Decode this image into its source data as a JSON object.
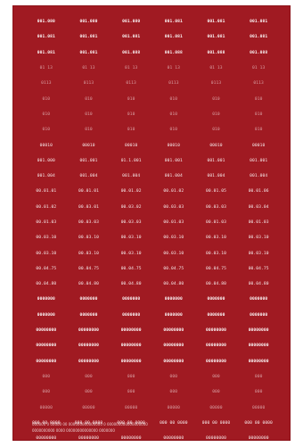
{
  "sheet": {
    "rows": [
      {
        "style": "bold",
        "cells": [
          "001.080",
          "001.080",
          "001.080",
          "001.081",
          "001.081",
          "001.081"
        ]
      },
      {
        "style": "bold",
        "cells": [
          "001.081",
          "001.081",
          "001.081",
          "001.081",
          "001.081",
          "001.081"
        ]
      },
      {
        "style": "bold",
        "cells": [
          "001.081",
          "001.081",
          "001.088",
          "001.088",
          "001.088",
          "001.088"
        ]
      },
      {
        "style": "dim",
        "cells": [
          "01 13",
          "01 13",
          "01 13",
          "01 13",
          "01 13",
          "01 13"
        ]
      },
      {
        "style": "dim",
        "cells": [
          "0113",
          "0113",
          "0113",
          "0113",
          "0113",
          "0113"
        ]
      },
      {
        "style": "dim",
        "cells": [
          "010",
          "010",
          "010",
          "010",
          "010",
          "010"
        ]
      },
      {
        "style": "dim",
        "cells": [
          "010",
          "010",
          "010",
          "010",
          "010",
          "010"
        ]
      },
      {
        "style": "dim",
        "cells": [
          "010",
          "010",
          "010",
          "010",
          "010",
          "010"
        ]
      },
      {
        "style": "normal",
        "cells": [
          "00010",
          "00010",
          "00010",
          "00010",
          "00010",
          "00010"
        ]
      },
      {
        "style": "normal",
        "cells": [
          "001.000",
          "001.001",
          "01.1.001",
          "001.001",
          "001.001",
          "001.001"
        ]
      },
      {
        "style": "normal",
        "cells": [
          "001.004",
          "001.004",
          "001.004",
          "001.004",
          "001.004",
          "001.004"
        ]
      },
      {
        "style": "normal",
        "cells": [
          "00.01.01",
          "00.01.01",
          "00.01.02",
          "00.01.02",
          "00.01.05",
          "00.01.06"
        ]
      },
      {
        "style": "normal",
        "cells": [
          "00.01.02",
          "00.03.01",
          "00.03.02",
          "00.03.03",
          "00.03.03",
          "00.03.04"
        ]
      },
      {
        "style": "normal",
        "cells": [
          "00.01.03",
          "00.03.03",
          "00.03.03",
          "00.01.03",
          "00.01.03",
          "00.01.03"
        ]
      },
      {
        "style": "normal",
        "cells": [
          "00.03.10",
          "00.03.10",
          "00.03.10",
          "00.03.10",
          "00.03.10",
          "00.03.10"
        ]
      },
      {
        "style": "normal",
        "cells": [
          "00.03.10",
          "00.03.10",
          "00.03.10",
          "00.03.10",
          "00.03.10",
          "00.03.10"
        ]
      },
      {
        "style": "normal",
        "cells": [
          "00.04.75",
          "00.04.75",
          "00.04.75",
          "00.04.75",
          "00.04.75",
          "00.04.75"
        ]
      },
      {
        "style": "normal",
        "cells": [
          "00.04.80",
          "00.04.80",
          "00.04.80",
          "00.04.80",
          "00.04.80",
          "00.04.80"
        ]
      },
      {
        "style": "bold",
        "cells": [
          "0000000",
          "0000000",
          "0000000",
          "0000000",
          "0000000",
          "0000000"
        ]
      },
      {
        "style": "bold",
        "cells": [
          "0000000",
          "0000000",
          "0000000",
          "0000000",
          "0000000",
          "0000000"
        ]
      },
      {
        "style": "bold",
        "cells": [
          "00000000",
          "00000000",
          "00000000",
          "00000000",
          "00000000",
          "00000000"
        ]
      },
      {
        "style": "bold",
        "cells": [
          "00000000",
          "00000000",
          "00000000",
          "00000000",
          "00000000",
          "00000000"
        ]
      },
      {
        "style": "bold",
        "cells": [
          "00000000",
          "00000000",
          "00000000",
          "00000000",
          "00000000",
          "00000000"
        ]
      },
      {
        "style": "dim",
        "cells": [
          "000",
          "000",
          "000",
          "000",
          "000",
          "000"
        ]
      },
      {
        "style": "dim",
        "cells": [
          "000",
          "000",
          "000",
          "000",
          "000",
          "000"
        ]
      },
      {
        "style": "dim",
        "cells": [
          "00000",
          "00000",
          "00000",
          "00000",
          "00000",
          "00000"
        ]
      },
      {
        "style": "normal",
        "cells": [
          "000 00 0000",
          "000 00 0000",
          "000 00 0000",
          "000 00 0000",
          "000 00 0000",
          "000 00 0000"
        ]
      },
      {
        "style": "normal",
        "cells": [
          "00000000",
          "00000000",
          "00000000",
          "00000000",
          "00000000",
          "00000000"
        ]
      }
    ],
    "footer_lines": [
      "000000 0 00000 00 000000000000000 0 000000000000000000",
      "0000000000 0000 00000000000000 0000000"
    ]
  }
}
